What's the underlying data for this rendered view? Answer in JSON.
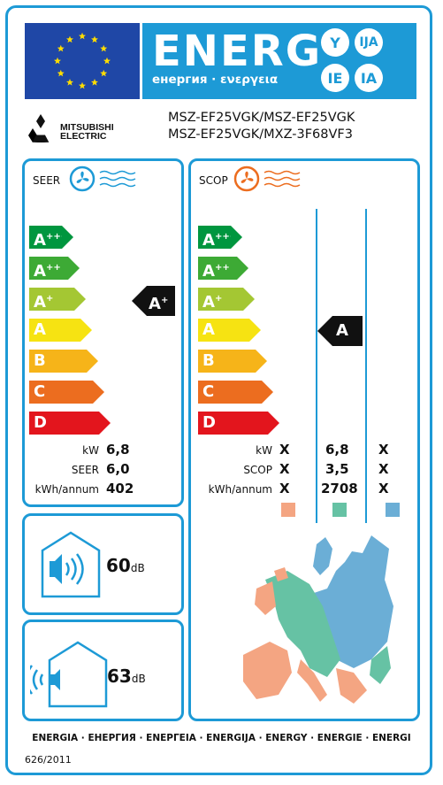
{
  "header": {
    "energy_word": "ENERG",
    "energy_sub": "енергия · ενεργεια",
    "language_badges": [
      "Y",
      "IJA",
      "IE",
      "IA"
    ]
  },
  "brand": {
    "logo_text": "MITSUBISHI ELECTRIC"
  },
  "models": {
    "line1": "MSZ-EF25VGK/MSZ-EF25VGK",
    "line2": "MSZ-EF25VGK/MXZ-3F68VF3"
  },
  "classes": [
    {
      "letter": "A",
      "sup": "+++",
      "color": "#00963f"
    },
    {
      "letter": "A",
      "sup": "++",
      "color": "#3daa35"
    },
    {
      "letter": "A",
      "sup": "+",
      "color": "#a4c733"
    },
    {
      "letter": "A",
      "sup": "",
      "color": "#f6e312"
    },
    {
      "letter": "B",
      "sup": "",
      "color": "#f6b419"
    },
    {
      "letter": "C",
      "sup": "",
      "color": "#ec6d1f"
    },
    {
      "letter": "D",
      "sup": "",
      "color": "#e3151d"
    }
  ],
  "seer": {
    "title": "SEER",
    "rating_letter": "A",
    "rating_sup": "+",
    "labels": [
      "kW",
      "SEER",
      "kWh/annum"
    ],
    "values": [
      "6,8",
      "6,0",
      "402"
    ]
  },
  "scop": {
    "title": "SCOP",
    "rating_letter": "A",
    "labels": [
      "kW",
      "SCOP",
      "kWh/annum"
    ],
    "col_warm": [
      "X",
      "X",
      "X"
    ],
    "col_average": [
      "6,8",
      "3,5",
      "2708"
    ],
    "col_cold": [
      "X",
      "X",
      "X"
    ],
    "zone_colors": [
      "#f4a582",
      "#66c2a4",
      "#6baed6"
    ]
  },
  "noise": {
    "indoor_value": "60",
    "outdoor_value": "63",
    "unit": "dB"
  },
  "footer": {
    "languages": "ENERGIA · ЕНЕРГИЯ · ΕΝΕΡΓΕΙΑ · ENERGIJA · ENERGY · ENERGIE · ENERGI",
    "regulation": "626/2011"
  }
}
